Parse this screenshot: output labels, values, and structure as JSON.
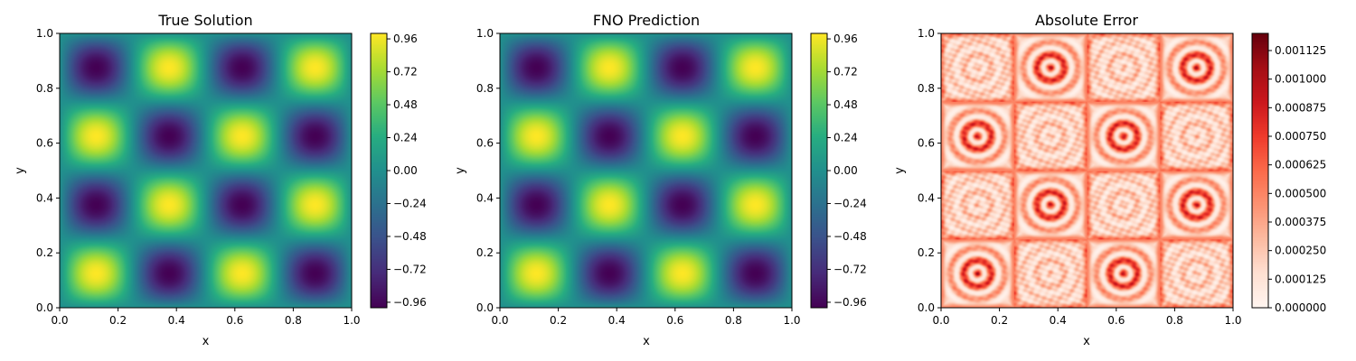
{
  "chart_data": [
    {
      "type": "heatmap",
      "title": "True Solution",
      "xlabel": "x",
      "ylabel": "y",
      "xlim": [
        0,
        1
      ],
      "ylim": [
        0,
        1
      ],
      "xticks": [
        "0.0",
        "0.2",
        "0.4",
        "0.6",
        "0.8",
        "1.0"
      ],
      "yticks": [
        "0.0",
        "0.2",
        "0.4",
        "0.6",
        "0.8",
        "1.0"
      ],
      "colormap": "viridis",
      "colorbar_range": [
        -1,
        1
      ],
      "colorbar_ticks": [
        "−0.96",
        "−0.72",
        "−0.48",
        "−0.24",
        "0.00",
        "0.24",
        "0.48",
        "0.72",
        "0.96"
      ],
      "field": "sin(4*pi*x) * sin(4*pi*y)"
    },
    {
      "type": "heatmap",
      "title": "FNO Prediction",
      "xlabel": "x",
      "ylabel": "y",
      "xlim": [
        0,
        1
      ],
      "ylim": [
        0,
        1
      ],
      "xticks": [
        "0.0",
        "0.2",
        "0.4",
        "0.6",
        "0.8",
        "1.0"
      ],
      "yticks": [
        "0.0",
        "0.2",
        "0.4",
        "0.6",
        "0.8",
        "1.0"
      ],
      "colormap": "viridis",
      "colorbar_range": [
        -1,
        1
      ],
      "colorbar_ticks": [
        "−0.96",
        "−0.72",
        "−0.48",
        "−0.24",
        "0.00",
        "0.24",
        "0.48",
        "0.72",
        "0.96"
      ],
      "field": "sin(4*pi*x) * sin(4*pi*y)"
    },
    {
      "type": "heatmap",
      "title": "Absolute Error",
      "xlabel": "x",
      "ylabel": "y",
      "xlim": [
        0,
        1
      ],
      "ylim": [
        0,
        1
      ],
      "xticks": [
        "0.0",
        "0.2",
        "0.4",
        "0.6",
        "0.8",
        "1.0"
      ],
      "yticks": [
        "0.0",
        "0.2",
        "0.4",
        "0.6",
        "0.8",
        "1.0"
      ],
      "colormap": "Reds",
      "colorbar_range": [
        0,
        0.0012
      ],
      "colorbar_ticks": [
        "0.000000",
        "0.000125",
        "0.000250",
        "0.000375",
        "0.000500",
        "0.000625",
        "0.000750",
        "0.000875",
        "0.001000",
        "0.001125"
      ],
      "field": "abs(prediction - true)"
    }
  ]
}
